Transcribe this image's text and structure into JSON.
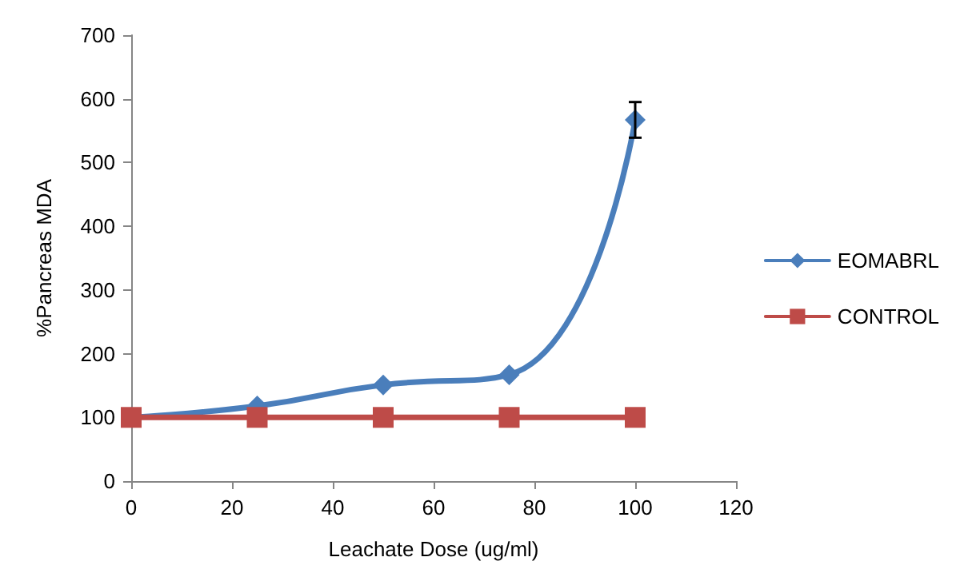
{
  "chart_data": {
    "type": "line",
    "xlabel": "Leachate Dose (ug/ml)",
    "ylabel": "%Pancreas MDA",
    "x": [
      0,
      25,
      50,
      75,
      100
    ],
    "series": [
      {
        "name": "EOMABRL",
        "color": "#4a7ebb",
        "values": [
          100,
          118,
          151,
          167,
          567
        ],
        "errors": [
          null,
          null,
          null,
          null,
          28
        ],
        "marker": "diamond"
      },
      {
        "name": "CONTROL",
        "color": "#be4b48",
        "values": [
          100,
          100,
          100,
          100,
          100
        ],
        "marker": "square"
      }
    ],
    "xlim": [
      0,
      120
    ],
    "xticks": [
      0,
      20,
      40,
      60,
      80,
      100,
      120
    ],
    "ylim": [
      0,
      700
    ],
    "yticks": [
      0,
      100,
      200,
      300,
      400,
      500,
      600,
      700
    ],
    "grid": false,
    "legend": "right",
    "line_style": "solid"
  }
}
